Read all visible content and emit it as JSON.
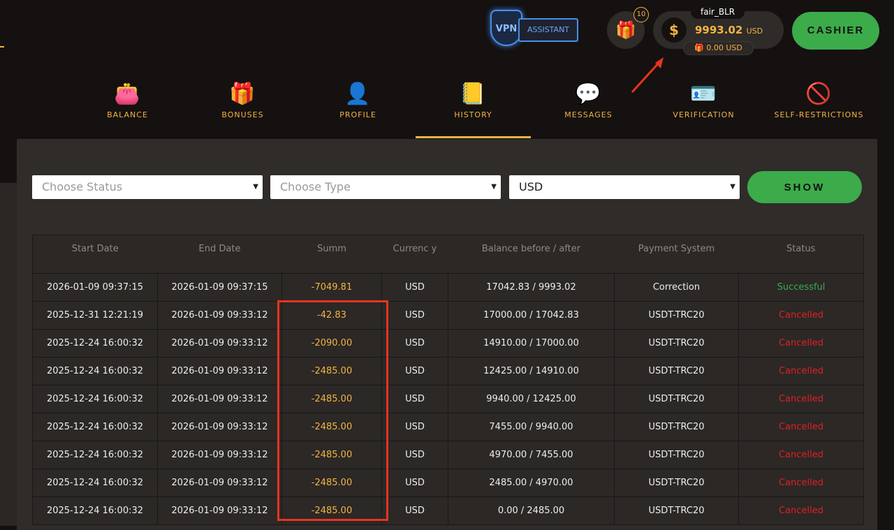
{
  "header": {
    "vpn_label": "VPN",
    "assistant_label": "ASSISTANT",
    "gift_count": "10",
    "username": "fair_BLR",
    "balance": "9993.02",
    "balance_currency": "USD",
    "bonus_balance": "0.00 USD",
    "cashier_label": "CASHIER"
  },
  "tabs": [
    {
      "label": "BALANCE",
      "icon": "wallet-icon"
    },
    {
      "label": "BONUSES",
      "icon": "gift-box-icon"
    },
    {
      "label": "PROFILE",
      "icon": "user-icon"
    },
    {
      "label": "HISTORY",
      "icon": "notepad-icon",
      "active": true
    },
    {
      "label": "MESSAGES",
      "icon": "chat-icon"
    },
    {
      "label": "VERIFICATION",
      "icon": "id-card-icon"
    },
    {
      "label": "SELF-RESTRICTIONS",
      "icon": "restriction-icon"
    }
  ],
  "filters": {
    "status_placeholder": "Choose Status",
    "type_placeholder": "Choose Type",
    "currency": "USD",
    "show_label": "SHOW"
  },
  "table": {
    "headers": [
      "Start Date",
      "End Date",
      "Summ",
      "Currenc y",
      "Balance before / after",
      "Payment System",
      "Status"
    ],
    "rows": [
      [
        "2026-01-09 09:37:15",
        "2026-01-09 09:37:15",
        "-7049.81",
        "USD",
        "17042.83 / 9993.02",
        "Correction",
        "Successful"
      ],
      [
        "2025-12-31 12:21:19",
        "2026-01-09 09:33:12",
        "-42.83",
        "USD",
        "17000.00 / 17042.83",
        "USDT-TRC20",
        "Cancelled"
      ],
      [
        "2025-12-24 16:00:32",
        "2026-01-09 09:33:12",
        "-2090.00",
        "USD",
        "14910.00 / 17000.00",
        "USDT-TRC20",
        "Cancelled"
      ],
      [
        "2025-12-24 16:00:32",
        "2026-01-09 09:33:12",
        "-2485.00",
        "USD",
        "12425.00 / 14910.00",
        "USDT-TRC20",
        "Cancelled"
      ],
      [
        "2025-12-24 16:00:32",
        "2026-01-09 09:33:12",
        "-2485.00",
        "USD",
        "9940.00 / 12425.00",
        "USDT-TRC20",
        "Cancelled"
      ],
      [
        "2025-12-24 16:00:32",
        "2026-01-09 09:33:12",
        "-2485.00",
        "USD",
        "7455.00 / 9940.00",
        "USDT-TRC20",
        "Cancelled"
      ],
      [
        "2025-12-24 16:00:32",
        "2026-01-09 09:33:12",
        "-2485.00",
        "USD",
        "4970.00 / 7455.00",
        "USDT-TRC20",
        "Cancelled"
      ],
      [
        "2025-12-24 16:00:32",
        "2026-01-09 09:33:12",
        "-2485.00",
        "USD",
        "2485.00 / 4970.00",
        "USDT-TRC20",
        "Cancelled"
      ],
      [
        "2025-12-24 16:00:32",
        "2026-01-09 09:33:12",
        "-2485.00",
        "USD",
        "0.00 / 2485.00",
        "USDT-TRC20",
        "Cancelled"
      ]
    ]
  },
  "colors": {
    "accent": "#f5b342",
    "green": "#3cab4a",
    "cancelled": "#e02020",
    "annotation": "#e6341f"
  }
}
